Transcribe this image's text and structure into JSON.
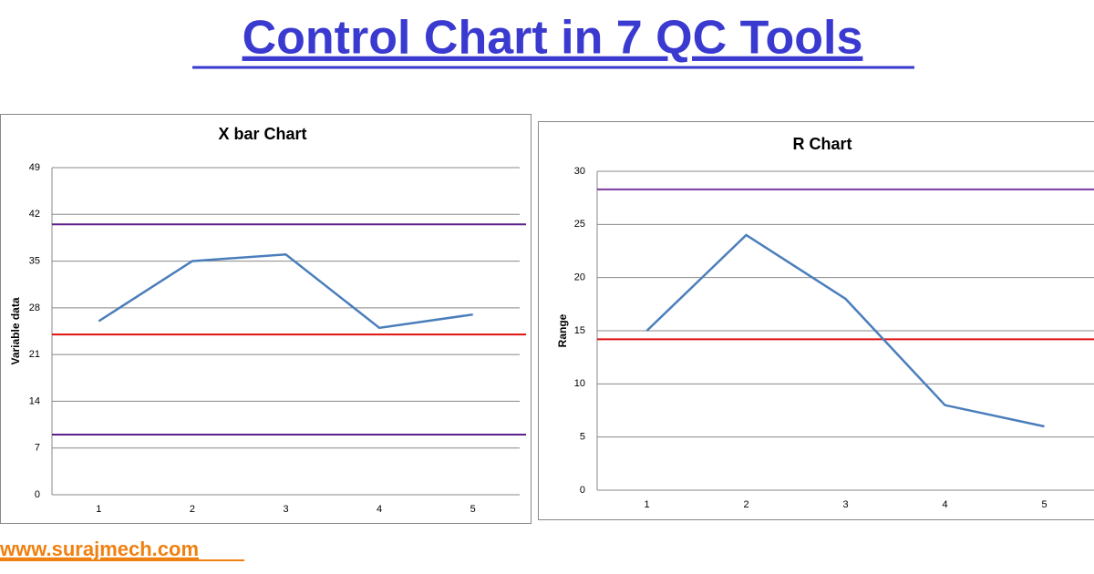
{
  "title": "Control Chart in 7 QC Tools",
  "website": "www.surajmech.com",
  "chart_data": [
    {
      "type": "line",
      "title": "X bar Chart",
      "y_label": "Variable data",
      "categories": [
        "1",
        "2",
        "3",
        "4",
        "5"
      ],
      "values": [
        26,
        35,
        36,
        25,
        27
      ],
      "color": "#4a7ebb",
      "ylim": [
        0,
        49
      ],
      "yticks": [
        0,
        7,
        14,
        21,
        28,
        35,
        42,
        49
      ],
      "grid": true,
      "reference_lines": [
        {
          "value": 40.5,
          "color": "#5b1f8a"
        },
        {
          "value": 24,
          "color": "#e01010"
        },
        {
          "value": 9,
          "color": "#5b1f8a"
        }
      ]
    },
    {
      "type": "line",
      "title": "R Chart",
      "y_label": "Range",
      "categories": [
        "1",
        "2",
        "3",
        "4",
        "5"
      ],
      "values": [
        15,
        24,
        18,
        8,
        6
      ],
      "color": "#4a7ebb",
      "ylim": [
        0,
        30
      ],
      "yticks": [
        0,
        5,
        10,
        15,
        20,
        25,
        30
      ],
      "grid": true,
      "reference_lines": [
        {
          "value": 28.3,
          "color": "#7a3aa0"
        },
        {
          "value": 14.2,
          "color": "#e01010"
        }
      ]
    }
  ]
}
